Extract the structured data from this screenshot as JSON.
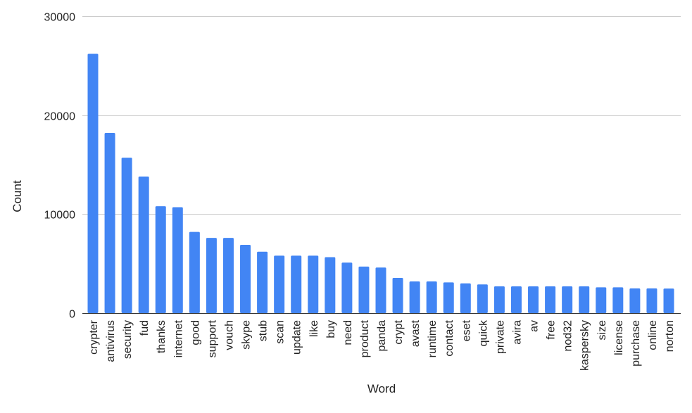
{
  "chart_data": {
    "type": "bar",
    "xlabel": "Word",
    "ylabel": "Count",
    "ylim": [
      0,
      30000
    ],
    "yticks": [
      0,
      10000,
      20000,
      30000
    ],
    "grid": true,
    "bar_color": "#4285f4",
    "grid_color": "#cccccc",
    "categories": [
      "crypter",
      "antivirus",
      "security",
      "fud",
      "thanks",
      "internet",
      "good",
      "support",
      "vouch",
      "skype",
      "stub",
      "scan",
      "update",
      "like",
      "buy",
      "need",
      "product",
      "panda",
      "crypt",
      "avast",
      "runtime",
      "contact",
      "eset",
      "quick",
      "private",
      "avira",
      "av",
      "free",
      "nod32",
      "kaspersky",
      "size",
      "license",
      "purchase",
      "online",
      "norton"
    ],
    "values": [
      26200,
      18200,
      15700,
      13800,
      10800,
      10700,
      8200,
      7600,
      7600,
      6900,
      6200,
      5800,
      5800,
      5800,
      5650,
      5100,
      4700,
      4600,
      3550,
      3200,
      3200,
      3100,
      3000,
      2900,
      2700,
      2700,
      2700,
      2700,
      2700,
      2700,
      2600,
      2600,
      2500,
      2500,
      2480
    ]
  }
}
